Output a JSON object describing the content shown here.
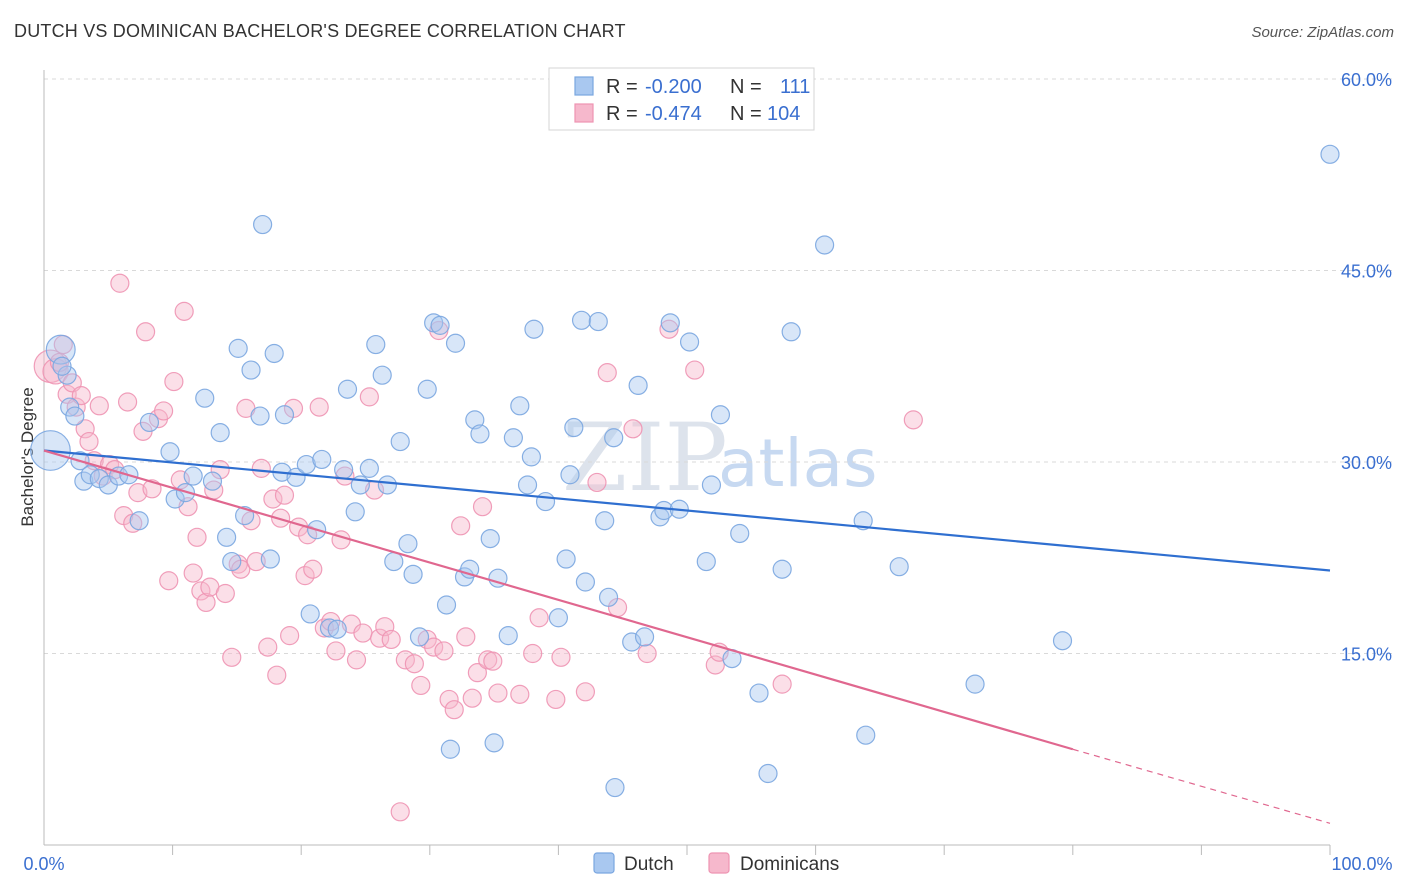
{
  "header": {
    "title": "DUTCH VS DOMINICAN BACHELOR'S DEGREE CORRELATION CHART",
    "source": "Source: ZipAtlas.com"
  },
  "watermark": {
    "zip": "ZIP",
    "atlas": "atlas"
  },
  "legend": {
    "rows": [
      {
        "r_label": "R =",
        "r_value": "-0.200",
        "n_label": "N =",
        "n_value": "111"
      },
      {
        "r_label": "R =",
        "r_value": "-0.474",
        "n_label": "N =",
        "n_value": "104"
      }
    ]
  },
  "colors": {
    "dutch_fill": "#a9c8f0",
    "dutch_stroke": "#7aa6e0",
    "dutch_line": "#2f6fd0",
    "dominican_fill": "#f6b8cc",
    "dominican_stroke": "#ee94b2",
    "dominican_line": "#e0678f",
    "axis_text": "#3a6fd0",
    "grid": "#d9d9d9"
  },
  "chart_data": {
    "type": "scatter",
    "title": "DUTCH VS DOMINICAN BACHELOR'S DEGREE CORRELATION CHART",
    "xlabel": "",
    "ylabel": "Bachelor's Degree",
    "xlim": [
      0,
      100
    ],
    "ylim": [
      0,
      60
    ],
    "x_tick_labels": [
      "0.0%",
      "100.0%"
    ],
    "y_ticks": [
      15,
      30,
      45,
      60
    ],
    "y_tick_labels": [
      "15.0%",
      "30.0%",
      "45.0%",
      "60.0%"
    ],
    "grid": true,
    "legend_position": "top-center",
    "series": [
      {
        "name": "Dutch",
        "r": -0.2,
        "n": 111,
        "trend": {
          "x": [
            0,
            100
          ],
          "y": [
            30.9,
            21.5
          ]
        },
        "points": [
          [
            0.5,
            30.9,
            2.2
          ],
          [
            1.3,
            38.8,
            1.6
          ],
          [
            1.8,
            36.8,
            1.0
          ],
          [
            1.4,
            37.5,
            1.0
          ],
          [
            2.0,
            34.3,
            1.0
          ],
          [
            2.4,
            33.6,
            1.0
          ],
          [
            2.8,
            30.1,
            1.0
          ],
          [
            3.1,
            28.5,
            1.0
          ],
          [
            3.6,
            29.0,
            1.0
          ],
          [
            4.3,
            28.7,
            1.0
          ],
          [
            5.0,
            28.2,
            1.0
          ],
          [
            5.8,
            28.9,
            1.0
          ],
          [
            6.6,
            29.0,
            1.0
          ],
          [
            7.4,
            25.4,
            1.0
          ],
          [
            8.2,
            33.1,
            1.0
          ],
          [
            9.8,
            30.8,
            1.0
          ],
          [
            10.2,
            27.1,
            1.0
          ],
          [
            11.0,
            27.6,
            1.0
          ],
          [
            11.6,
            28.9,
            1.0
          ],
          [
            12.5,
            35.0,
            1.0
          ],
          [
            13.1,
            28.5,
            1.0
          ],
          [
            13.7,
            32.3,
            1.0
          ],
          [
            14.2,
            24.1,
            1.0
          ],
          [
            14.6,
            22.2,
            1.0
          ],
          [
            15.1,
            38.9,
            1.0
          ],
          [
            15.6,
            25.8,
            1.0
          ],
          [
            16.1,
            37.2,
            1.0
          ],
          [
            16.8,
            33.6,
            1.0
          ],
          [
            17.0,
            48.6,
            1.0
          ],
          [
            17.6,
            22.4,
            1.0
          ],
          [
            17.9,
            38.5,
            1.0
          ],
          [
            18.5,
            29.2,
            1.0
          ],
          [
            18.7,
            33.7,
            1.0
          ],
          [
            19.6,
            28.8,
            1.0
          ],
          [
            20.4,
            29.8,
            1.0
          ],
          [
            20.7,
            18.1,
            1.0
          ],
          [
            21.2,
            24.7,
            1.0
          ],
          [
            21.6,
            30.2,
            1.0
          ],
          [
            22.2,
            17.0,
            1.0
          ],
          [
            22.8,
            16.9,
            1.0
          ],
          [
            23.3,
            29.4,
            1.0
          ],
          [
            23.6,
            35.7,
            1.0
          ],
          [
            24.2,
            26.1,
            1.0
          ],
          [
            24.6,
            28.2,
            1.0
          ],
          [
            25.3,
            29.5,
            1.0
          ],
          [
            25.8,
            39.2,
            1.0
          ],
          [
            26.3,
            36.8,
            1.0
          ],
          [
            26.7,
            28.2,
            1.0
          ],
          [
            27.2,
            22.2,
            1.0
          ],
          [
            27.7,
            31.6,
            1.0
          ],
          [
            28.3,
            23.6,
            1.0
          ],
          [
            28.7,
            21.2,
            1.0
          ],
          [
            29.2,
            16.3,
            1.0
          ],
          [
            29.8,
            35.7,
            1.0
          ],
          [
            30.3,
            40.9,
            1.0
          ],
          [
            30.8,
            40.7,
            1.0
          ],
          [
            31.3,
            18.8,
            1.0
          ],
          [
            31.6,
            7.5,
            1.0
          ],
          [
            32.0,
            39.3,
            1.0
          ],
          [
            32.7,
            21.0,
            1.0
          ],
          [
            33.1,
            21.6,
            1.0
          ],
          [
            33.5,
            33.3,
            1.0
          ],
          [
            33.9,
            32.2,
            1.0
          ],
          [
            34.7,
            24.0,
            1.0
          ],
          [
            35.3,
            20.9,
            1.0
          ],
          [
            35.0,
            8.0,
            1.0
          ],
          [
            36.1,
            16.4,
            1.0
          ],
          [
            36.5,
            31.9,
            1.0
          ],
          [
            37.0,
            34.4,
            1.0
          ],
          [
            37.6,
            28.2,
            1.0
          ],
          [
            37.9,
            30.4,
            1.0
          ],
          [
            38.1,
            40.4,
            1.0
          ],
          [
            39.0,
            26.9,
            1.0
          ],
          [
            40.0,
            17.8,
            1.0
          ],
          [
            40.6,
            22.4,
            1.0
          ],
          [
            40.9,
            29.0,
            1.0
          ],
          [
            41.2,
            32.7,
            1.0
          ],
          [
            41.8,
            41.1,
            1.0
          ],
          [
            42.1,
            20.6,
            1.0
          ],
          [
            43.1,
            41.0,
            1.0
          ],
          [
            43.6,
            25.4,
            1.0
          ],
          [
            43.9,
            19.4,
            1.0
          ],
          [
            44.3,
            31.9,
            1.0
          ],
          [
            44.4,
            4.5,
            1.0
          ],
          [
            45.7,
            15.9,
            1.0
          ],
          [
            46.2,
            36.0,
            1.0
          ],
          [
            46.7,
            16.3,
            1.0
          ],
          [
            47.9,
            25.7,
            1.0
          ],
          [
            48.2,
            26.2,
            1.0
          ],
          [
            48.7,
            40.9,
            1.0
          ],
          [
            49.4,
            26.3,
            1.0
          ],
          [
            50.2,
            39.4,
            1.0
          ],
          [
            51.5,
            22.2,
            1.0
          ],
          [
            51.9,
            28.2,
            1.0
          ],
          [
            52.6,
            33.7,
            1.0
          ],
          [
            53.5,
            14.6,
            1.0
          ],
          [
            54.1,
            24.4,
            1.0
          ],
          [
            55.6,
            11.9,
            1.0
          ],
          [
            56.3,
            5.6,
            1.0
          ],
          [
            57.4,
            21.6,
            1.0
          ],
          [
            58.1,
            40.2,
            1.0
          ],
          [
            60.7,
            47.0,
            1.0
          ],
          [
            63.7,
            25.4,
            1.0
          ],
          [
            63.9,
            8.6,
            1.0
          ],
          [
            66.5,
            21.8,
            1.0
          ],
          [
            72.4,
            12.6,
            1.0
          ],
          [
            79.2,
            16.0,
            1.0
          ],
          [
            100.0,
            54.1,
            1.0
          ]
        ]
      },
      {
        "name": "Dominicans",
        "r": -0.474,
        "n": 104,
        "trend": {
          "x": [
            0,
            80
          ],
          "y": [
            30.9,
            7.5
          ]
        },
        "trend_extension": {
          "x": [
            80,
            100
          ],
          "y": [
            7.5,
            1.7
          ]
        },
        "points": [
          [
            0.5,
            37.5,
            1.8
          ],
          [
            0.9,
            37.1,
            1.4
          ],
          [
            1.2,
            37.8,
            1.0
          ],
          [
            1.5,
            39.2,
            1.0
          ],
          [
            1.8,
            35.3,
            1.0
          ],
          [
            2.2,
            36.2,
            1.0
          ],
          [
            2.5,
            34.3,
            1.0
          ],
          [
            2.9,
            35.2,
            1.0
          ],
          [
            3.2,
            32.6,
            1.0
          ],
          [
            3.5,
            31.6,
            1.0
          ],
          [
            3.9,
            30.1,
            1.0
          ],
          [
            4.3,
            34.4,
            1.0
          ],
          [
            4.6,
            28.9,
            1.0
          ],
          [
            5.1,
            29.8,
            1.0
          ],
          [
            5.5,
            29.4,
            1.0
          ],
          [
            5.9,
            44.0,
            1.0
          ],
          [
            6.2,
            25.8,
            1.0
          ],
          [
            6.5,
            34.7,
            1.0
          ],
          [
            6.9,
            25.2,
            1.0
          ],
          [
            7.3,
            27.6,
            1.0
          ],
          [
            7.7,
            32.4,
            1.0
          ],
          [
            7.9,
            40.2,
            1.0
          ],
          [
            8.4,
            27.9,
            1.0
          ],
          [
            8.9,
            33.4,
            1.0
          ],
          [
            9.3,
            34.0,
            1.0
          ],
          [
            9.7,
            20.7,
            1.0
          ],
          [
            10.1,
            36.3,
            1.0
          ],
          [
            10.6,
            28.6,
            1.0
          ],
          [
            10.9,
            41.8,
            1.0
          ],
          [
            11.2,
            26.5,
            1.0
          ],
          [
            11.6,
            21.3,
            1.0
          ],
          [
            11.9,
            24.1,
            1.0
          ],
          [
            12.2,
            19.9,
            1.0
          ],
          [
            12.6,
            19.0,
            1.0
          ],
          [
            12.9,
            20.2,
            1.0
          ],
          [
            13.2,
            27.8,
            1.0
          ],
          [
            13.7,
            29.4,
            1.0
          ],
          [
            14.1,
            19.7,
            1.0
          ],
          [
            14.6,
            14.7,
            1.0
          ],
          [
            15.1,
            22.0,
            1.0
          ],
          [
            15.3,
            21.6,
            1.0
          ],
          [
            15.7,
            34.2,
            1.0
          ],
          [
            16.1,
            25.4,
            1.0
          ],
          [
            16.5,
            22.2,
            1.0
          ],
          [
            16.9,
            29.5,
            1.0
          ],
          [
            17.4,
            15.5,
            1.0
          ],
          [
            17.8,
            27.1,
            1.0
          ],
          [
            18.1,
            13.3,
            1.0
          ],
          [
            18.4,
            25.6,
            1.0
          ],
          [
            18.7,
            27.4,
            1.0
          ],
          [
            19.1,
            16.4,
            1.0
          ],
          [
            19.4,
            34.2,
            1.0
          ],
          [
            19.8,
            24.9,
            1.0
          ],
          [
            20.3,
            21.1,
            1.0
          ],
          [
            20.5,
            24.3,
            1.0
          ],
          [
            20.9,
            21.6,
            1.0
          ],
          [
            21.4,
            34.3,
            1.0
          ],
          [
            21.8,
            17.0,
            1.0
          ],
          [
            22.3,
            17.5,
            1.0
          ],
          [
            22.7,
            15.2,
            1.0
          ],
          [
            23.1,
            23.9,
            1.0
          ],
          [
            23.4,
            28.9,
            1.0
          ],
          [
            23.9,
            17.3,
            1.0
          ],
          [
            24.3,
            14.5,
            1.0
          ],
          [
            24.8,
            16.6,
            1.0
          ],
          [
            25.3,
            35.1,
            1.0
          ],
          [
            25.7,
            27.8,
            1.0
          ],
          [
            26.1,
            16.2,
            1.0
          ],
          [
            26.5,
            17.1,
            1.0
          ],
          [
            27.0,
            16.1,
            1.0
          ],
          [
            27.7,
            2.6,
            1.0
          ],
          [
            28.1,
            14.5,
            1.0
          ],
          [
            28.8,
            14.2,
            1.0
          ],
          [
            29.3,
            12.5,
            1.0
          ],
          [
            29.8,
            16.1,
            1.0
          ],
          [
            30.3,
            15.5,
            1.0
          ],
          [
            30.7,
            40.3,
            1.0
          ],
          [
            31.1,
            15.2,
            1.0
          ],
          [
            31.5,
            11.4,
            1.0
          ],
          [
            31.9,
            10.6,
            1.0
          ],
          [
            32.4,
            25.0,
            1.0
          ],
          [
            32.8,
            16.3,
            1.0
          ],
          [
            33.3,
            11.5,
            1.0
          ],
          [
            33.7,
            13.5,
            1.0
          ],
          [
            34.1,
            26.5,
            1.0
          ],
          [
            34.5,
            14.5,
            1.0
          ],
          [
            34.9,
            14.4,
            1.0
          ],
          [
            35.3,
            11.9,
            1.0
          ],
          [
            37.0,
            11.8,
            1.0
          ],
          [
            38.0,
            15.0,
            1.0
          ],
          [
            38.5,
            17.8,
            1.0
          ],
          [
            39.8,
            11.4,
            1.0
          ],
          [
            40.2,
            14.7,
            1.0
          ],
          [
            42.1,
            12.0,
            1.0
          ],
          [
            43.0,
            28.4,
            1.0
          ],
          [
            43.8,
            37.0,
            1.0
          ],
          [
            44.6,
            18.6,
            1.0
          ],
          [
            45.8,
            32.6,
            1.0
          ],
          [
            46.9,
            15.0,
            1.0
          ],
          [
            48.6,
            40.4,
            1.0
          ],
          [
            50.6,
            37.2,
            1.0
          ],
          [
            52.2,
            14.1,
            1.0
          ],
          [
            52.5,
            15.1,
            1.0
          ],
          [
            57.4,
            12.6,
            1.0
          ],
          [
            67.6,
            33.3,
            1.0
          ]
        ]
      }
    ]
  }
}
